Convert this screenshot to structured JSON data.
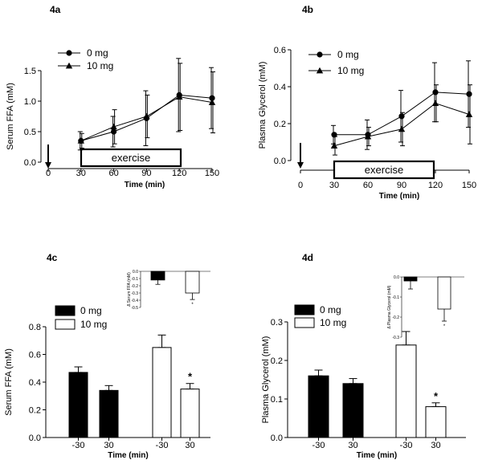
{
  "chart_data": [
    {
      "id": "4a",
      "type": "line",
      "panel_label": "4a",
      "xlabel": "Time (min)",
      "ylabel": "Serum FFA (mM)",
      "x": [
        30,
        60,
        90,
        120,
        150
      ],
      "xticks": [
        "0",
        "30",
        "60",
        "90",
        "120",
        "150"
      ],
      "yticks": [
        "0.0",
        "0.5",
        "1.0",
        "1.5"
      ],
      "xlim": [
        0,
        150
      ],
      "ylim": [
        0,
        1.5
      ],
      "series": [
        {
          "name": "0 mg",
          "marker": "circle",
          "values": [
            0.35,
            0.5,
            0.72,
            1.1,
            1.05
          ],
          "errors": [
            0.15,
            0.25,
            0.45,
            0.6,
            0.5
          ]
        },
        {
          "name": "10 mg",
          "marker": "triangle",
          "values": [
            0.35,
            0.58,
            0.75,
            1.07,
            0.98
          ],
          "errors": [
            0.12,
            0.28,
            0.35,
            0.55,
            0.5
          ]
        }
      ],
      "annotation": "exercise",
      "arrow_at": 0
    },
    {
      "id": "4b",
      "type": "line",
      "panel_label": "4b",
      "xlabel": "Time (min)",
      "ylabel": "Plasma Glycerol (mM)",
      "x": [
        30,
        60,
        90,
        120,
        150
      ],
      "xticks": [
        "0",
        "30",
        "60",
        "90",
        "120",
        "150"
      ],
      "yticks": [
        "0.0",
        "0.2",
        "0.4",
        "0.6"
      ],
      "xlim": [
        0,
        150
      ],
      "ylim": [
        0,
        0.6
      ],
      "series": [
        {
          "name": "0 mg",
          "marker": "circle",
          "values": [
            0.14,
            0.14,
            0.24,
            0.37,
            0.36
          ],
          "errors": [
            0.05,
            0.08,
            0.14,
            0.16,
            0.18
          ]
        },
        {
          "name": "10 mg",
          "marker": "triangle",
          "values": [
            0.08,
            0.13,
            0.17,
            0.31,
            0.25
          ],
          "errors": [
            0.05,
            0.05,
            0.09,
            0.1,
            0.16
          ]
        }
      ],
      "annotation": "exercise",
      "arrow_at": 0
    },
    {
      "id": "4c",
      "type": "bar",
      "panel_label": "4c",
      "xlabel": "Time (min)",
      "ylabel": "Serum FFA (mM)",
      "categories": [
        "-30",
        "30",
        "-30",
        "30"
      ],
      "groups": [
        "0 mg",
        "0 mg",
        "10 mg",
        "10 mg"
      ],
      "values": [
        0.47,
        0.34,
        0.65,
        0.35
      ],
      "errors": [
        0.04,
        0.035,
        0.09,
        0.04
      ],
      "significance": [
        "",
        "",
        "",
        "*"
      ],
      "yticks": [
        "0.0",
        "0.2",
        "0.4",
        "0.6",
        "0.8"
      ],
      "ylim": [
        0,
        0.8
      ],
      "legend": [
        "0 mg",
        "10 mg"
      ],
      "inset": {
        "ylabel": "Δ Serum FFA (mM)",
        "yticks": [
          "0.0",
          "-0.1",
          "-0.2",
          "-0.3",
          "-0.4",
          "-0.5"
        ],
        "ylim": [
          -0.5,
          0
        ],
        "values": [
          -0.12,
          -0.3
        ],
        "errors": [
          0.06,
          0.09
        ],
        "significance": [
          "",
          "*"
        ]
      }
    },
    {
      "id": "4d",
      "type": "bar",
      "panel_label": "4d",
      "xlabel": "Time (min)",
      "ylabel": "Plasma Glycerol (mM)",
      "categories": [
        "-30",
        "30",
        "-30",
        "30"
      ],
      "groups": [
        "0 mg",
        "0 mg",
        "10 mg",
        "10 mg"
      ],
      "values": [
        0.16,
        0.14,
        0.24,
        0.08
      ],
      "errors": [
        0.015,
        0.013,
        0.035,
        0.01
      ],
      "significance": [
        "",
        "",
        "",
        "*"
      ],
      "yticks": [
        "0.0",
        "0.1",
        "0.2",
        "0.3"
      ],
      "ylim": [
        0,
        0.3
      ],
      "legend": [
        "0 mg",
        "10 mg"
      ],
      "inset": {
        "ylabel": "Δ Plasma Glycerol (mM)",
        "yticks": [
          "0.0",
          "-0.1",
          "-0.2",
          "-0.3"
        ],
        "ylim": [
          -0.3,
          0
        ],
        "values": [
          -0.02,
          -0.16
        ],
        "errors": [
          0.04,
          0.06
        ],
        "significance": [
          "",
          "*"
        ]
      }
    }
  ]
}
